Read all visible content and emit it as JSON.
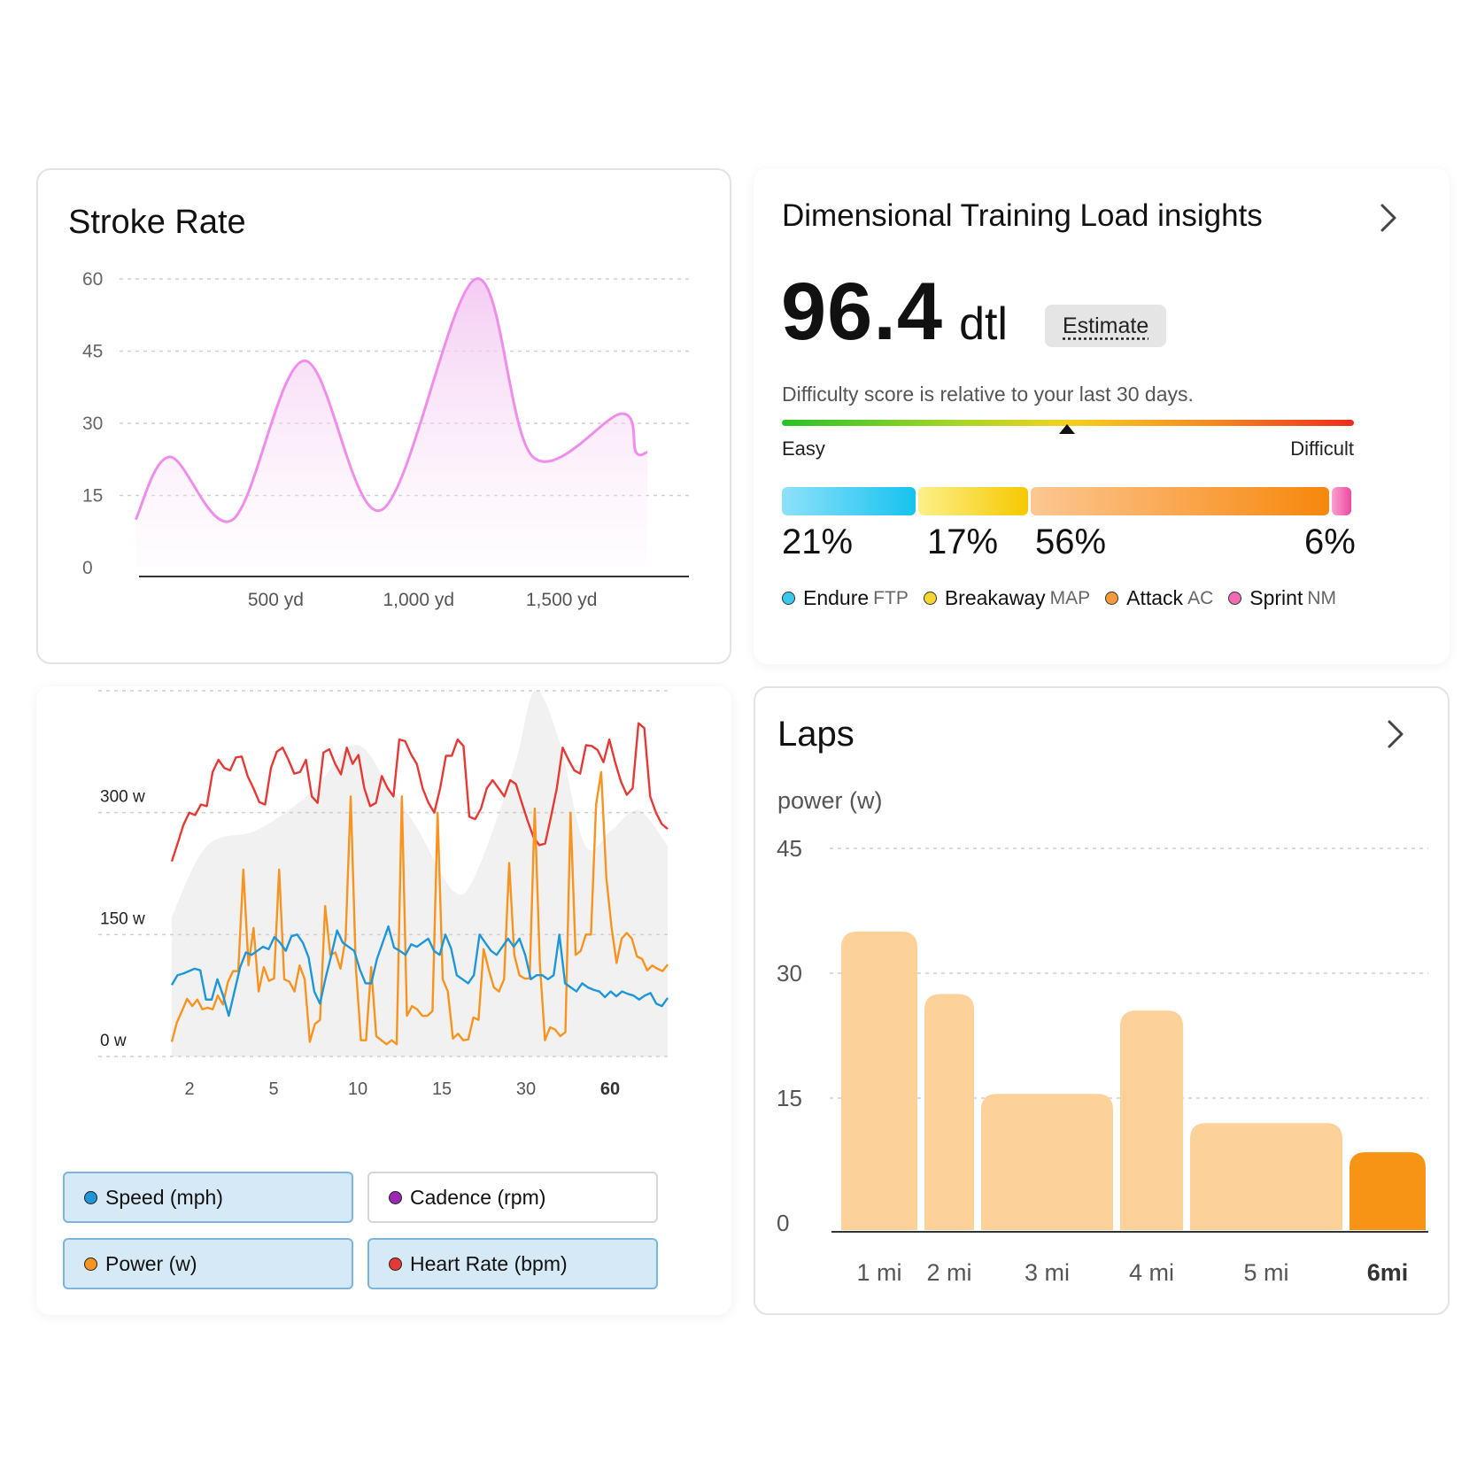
{
  "stroke_rate": {
    "title": "Stroke Rate",
    "chart_data": {
      "type": "area",
      "title": "Stroke Rate",
      "y_ticks": [
        "60",
        "45",
        "30",
        "15",
        "0"
      ],
      "x_ticks": [
        "500 yd",
        "1,000 yd",
        "1,500 yd"
      ],
      "ylim": [
        0,
        60
      ],
      "xlim": [
        0,
        1800
      ],
      "x": [
        10,
        130,
        350,
        600,
        870,
        1200,
        1400,
        1710,
        1760,
        1800
      ],
      "y": [
        10,
        23,
        10,
        43,
        12,
        60,
        23,
        32,
        24,
        24
      ],
      "color": "#ef8eea",
      "grid": true
    }
  },
  "dtl": {
    "title": "Dimensional Training Load insights",
    "score": "96.4",
    "unit": "dtl",
    "estimate_label": "Estimate",
    "subtext": "Difficulty score is relative to your last 30 days.",
    "scale_min_label": "Easy",
    "scale_max_label": "Difficult",
    "marker_value": 0.5,
    "zones": [
      {
        "pct": "21%",
        "value": 21,
        "name": "Endure",
        "abbr": "FTP",
        "color": "#3cc8ee"
      },
      {
        "pct": "17%",
        "value": 17,
        "name": "Breakaway",
        "abbr": "MAP",
        "color": "#f5d630"
      },
      {
        "pct": "56%",
        "value": 56,
        "name": "Attack",
        "abbr": "AC",
        "color": "#f79a3a"
      },
      {
        "pct": "6%",
        "value": 6,
        "name": "Sprint",
        "abbr": "NM",
        "color": "#f06ab4"
      }
    ]
  },
  "metrics": {
    "chart_data": {
      "type": "line",
      "y_ticks": [
        "300 w",
        "150 w",
        "0 w"
      ],
      "ylim": [
        0,
        450
      ],
      "x_ticks": [
        "2",
        "5",
        "10",
        "15",
        "30",
        "60"
      ],
      "series": [
        {
          "name": "Heart Rate (bpm)",
          "color": "#e53935",
          "values": [
            240,
            262,
            285,
            300,
            297,
            310,
            308,
            350,
            365,
            355,
            352,
            368,
            369,
            345,
            330,
            313,
            310,
            355,
            375,
            380,
            365,
            348,
            350,
            365,
            320,
            312,
            374,
            378,
            360,
            347,
            380,
            360,
            371,
            330,
            308,
            312,
            345,
            330,
            320,
            390,
            388,
            372,
            360,
            330,
            312,
            300,
            330,
            370,
            370,
            390,
            382,
            295,
            292,
            305,
            330,
            340,
            330,
            320,
            340,
            335,
            312,
            290,
            270,
            260,
            262,
            295,
            330,
            380,
            365,
            352,
            348,
            383,
            382,
            377,
            362,
            390,
            362,
            338,
            322,
            330,
            410,
            404,
            320,
            300,
            286,
            280
          ]
        },
        {
          "name": "Power (w)",
          "color": "#f7931e",
          "values": [
            18,
            42,
            56,
            71,
            62,
            70,
            58,
            60,
            58,
            75,
            64,
            92,
            105,
            105,
            230,
            112,
            158,
            80,
            110,
            93,
            96,
            230,
            95,
            92,
            80,
            112,
            95,
            18,
            40,
            45,
            185,
            125,
            128,
            108,
            145,
            320,
            110,
            20,
            20,
            110,
            25,
            20,
            15,
            20,
            15,
            320,
            50,
            62,
            58,
            50,
            50,
            56,
            300,
            95,
            80,
            22,
            28,
            20,
            21,
            48,
            45,
            132,
            107,
            85,
            80,
            95,
            238,
            125,
            100,
            96,
            96,
            305,
            114,
            20,
            36,
            33,
            25,
            30,
            300,
            125,
            130,
            150,
            150,
            310,
            350,
            220,
            160,
            115,
            145,
            152,
            145,
            123,
            120,
            106,
            112,
            108,
            105,
            113
          ]
        },
        {
          "name": "Speed (mph)",
          "color": "#1e96d7",
          "values": [
            88,
            100,
            102,
            105,
            108,
            106,
            70,
            70,
            95,
            75,
            50,
            80,
            110,
            128,
            125,
            130,
            135,
            132,
            147,
            140,
            130,
            148,
            150,
            140,
            122,
            80,
            65,
            97,
            125,
            155,
            140,
            135,
            130,
            107,
            90,
            90,
            120,
            140,
            160,
            134,
            130,
            125,
            138,
            135,
            140,
            145,
            130,
            125,
            150,
            133,
            100,
            95,
            90,
            100,
            150,
            140,
            130,
            125,
            135,
            145,
            135,
            145,
            125,
            95,
            100,
            100,
            95,
            100,
            150,
            90,
            85,
            80,
            90,
            85,
            82,
            80,
            73,
            80,
            74,
            80,
            77,
            75,
            70,
            75,
            78,
            65,
            62,
            72
          ]
        },
        {
          "name": "Cadence (rpm)",
          "color": "#9c27b0",
          "values": []
        }
      ],
      "background_area": true,
      "grid": true
    },
    "toggles": [
      {
        "label": "Speed (mph)",
        "color": "#1e96d7",
        "active": true
      },
      {
        "label": "Cadence (rpm)",
        "color": "#9c27b0",
        "active": false
      },
      {
        "label": "Power (w)",
        "color": "#f7931e",
        "active": true
      },
      {
        "label": "Heart Rate (bpm)",
        "color": "#e53935",
        "active": true
      }
    ]
  },
  "laps": {
    "title": "Laps",
    "unit_label": "power (w)",
    "chart_data": {
      "type": "bar",
      "categories": [
        "1 mi",
        "2 mi",
        "3 mi",
        "4 mi",
        "5 mi",
        "6mi"
      ],
      "values": [
        35,
        27.5,
        15.5,
        25.5,
        12,
        8.5
      ],
      "y_ticks": [
        "45",
        "30",
        "15",
        "0"
      ],
      "ylim": [
        0,
        45
      ],
      "bar_color": "#fdd19a",
      "highlight_color": "#f79416",
      "highlight_index": 5,
      "grid": true
    }
  }
}
